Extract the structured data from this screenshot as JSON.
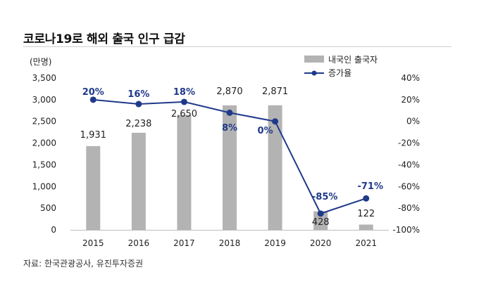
{
  "header": {
    "title": "코로나19로 해외 출국 인구 급감"
  },
  "footer": {
    "source": "자료: 한국관광공사, 유진투자증권"
  },
  "chart_data": {
    "type": "bar+line",
    "title": "코로나19로 해외 출국 인구 급감",
    "categories": [
      "2015",
      "2016",
      "2017",
      "2018",
      "2019",
      "2020",
      "2021"
    ],
    "left_axis": {
      "unit_label": "(만명)",
      "ylim": [
        0,
        3500
      ],
      "ticks": [
        "0",
        "500",
        "1,000",
        "1,500",
        "2,000",
        "2,500",
        "3,000",
        "3,500"
      ],
      "tick_values": [
        0,
        500,
        1000,
        1500,
        2000,
        2500,
        3000,
        3500
      ]
    },
    "right_axis": {
      "ylim": [
        -100,
        40
      ],
      "ticks": [
        "-100%",
        "-80%",
        "-60%",
        "-40%",
        "-20%",
        "0%",
        "20%",
        "40%"
      ],
      "tick_values": [
        -100,
        -80,
        -60,
        -40,
        -20,
        0,
        20,
        40
      ]
    },
    "series": [
      {
        "name": "내국인 출국자",
        "type": "bar",
        "axis": "left",
        "color": "#b3b3b3",
        "values": [
          1931,
          2238,
          2650,
          2870,
          2871,
          428,
          122
        ],
        "labels": [
          "1,931",
          "2,238",
          "2,650",
          "2,870",
          "2,871",
          "428",
          "122"
        ]
      },
      {
        "name": "증가율",
        "type": "line",
        "axis": "right",
        "color": "#1f3a8a",
        "values": [
          20,
          16,
          18,
          8,
          0,
          -85,
          -71
        ],
        "labels": [
          "20%",
          "16%",
          "18%",
          "8%",
          "0%",
          "-85%",
          "-71%"
        ]
      }
    ],
    "legend": [
      "내국인 출국자",
      "증가율"
    ],
    "legend_position": "top-right",
    "grid": false
  }
}
